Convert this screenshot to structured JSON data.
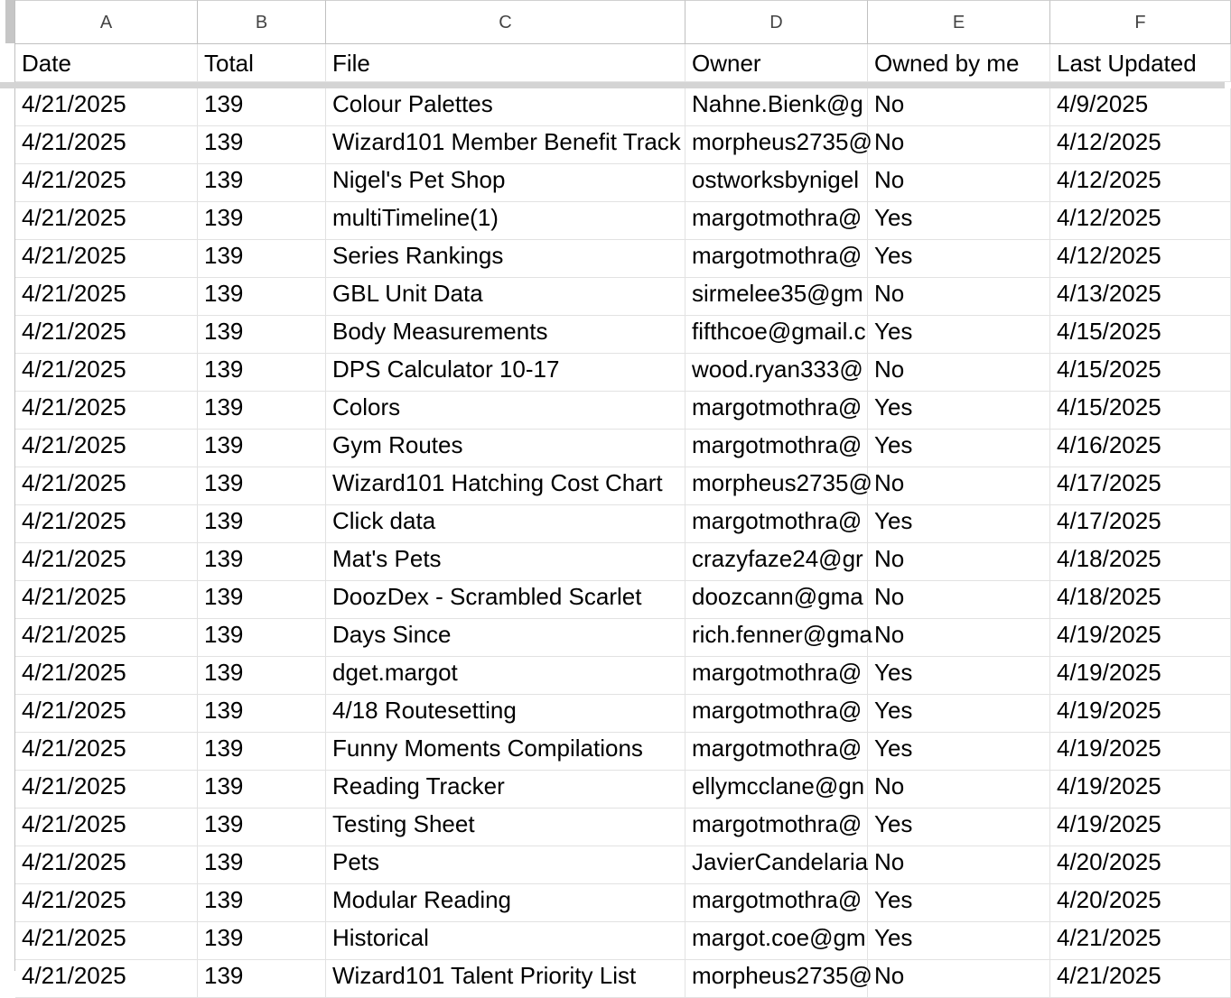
{
  "columns": [
    "A",
    "B",
    "C",
    "D",
    "E",
    "F"
  ],
  "header": [
    "Date",
    "Total",
    "File",
    "Owner",
    "Owned by me",
    "Last Updated"
  ],
  "rows": [
    [
      "4/21/2025",
      "139",
      "Colour Palettes",
      "Nahne.Bienk@g",
      "No",
      "4/9/2025"
    ],
    [
      "4/21/2025",
      "139",
      "Wizard101 Member Benefit Track",
      "morpheus2735@",
      "No",
      "4/12/2025"
    ],
    [
      "4/21/2025",
      "139",
      "Nigel's Pet Shop",
      "ostworksbynigel",
      "No",
      "4/12/2025"
    ],
    [
      "4/21/2025",
      "139",
      "multiTimeline(1)",
      "margotmothra@",
      "Yes",
      "4/12/2025"
    ],
    [
      "4/21/2025",
      "139",
      "Series Rankings",
      "margotmothra@",
      "Yes",
      "4/12/2025"
    ],
    [
      "4/21/2025",
      "139",
      "GBL Unit Data",
      "sirmelee35@gm",
      "No",
      "4/13/2025"
    ],
    [
      "4/21/2025",
      "139",
      "Body Measurements",
      "fifthcoe@gmail.c",
      "Yes",
      "4/15/2025"
    ],
    [
      "4/21/2025",
      "139",
      "DPS Calculator 10-17",
      "wood.ryan333@",
      "No",
      "4/15/2025"
    ],
    [
      "4/21/2025",
      "139",
      "Colors",
      "margotmothra@",
      "Yes",
      "4/15/2025"
    ],
    [
      "4/21/2025",
      "139",
      "Gym Routes",
      "margotmothra@",
      "Yes",
      "4/16/2025"
    ],
    [
      "4/21/2025",
      "139",
      "Wizard101 Hatching Cost Chart",
      "morpheus2735@",
      "No",
      "4/17/2025"
    ],
    [
      "4/21/2025",
      "139",
      "Click data",
      "margotmothra@",
      "Yes",
      "4/17/2025"
    ],
    [
      "4/21/2025",
      "139",
      "Mat's Pets",
      "crazyfaze24@gr",
      "No",
      "4/18/2025"
    ],
    [
      "4/21/2025",
      "139",
      "DoozDex - Scrambled Scarlet",
      "doozcann@gma",
      "No",
      "4/18/2025"
    ],
    [
      "4/21/2025",
      "139",
      "Days Since",
      "rich.fenner@gma",
      "No",
      "4/19/2025"
    ],
    [
      "4/21/2025",
      "139",
      "dget.margot",
      "margotmothra@",
      "Yes",
      "4/19/2025"
    ],
    [
      "4/21/2025",
      "139",
      "4/18 Routesetting",
      "margotmothra@",
      "Yes",
      "4/19/2025"
    ],
    [
      "4/21/2025",
      "139",
      "Funny Moments Compilations",
      "margotmothra@",
      "Yes",
      "4/19/2025"
    ],
    [
      "4/21/2025",
      "139",
      "Reading Tracker",
      "ellymcclane@gn",
      "No",
      "4/19/2025"
    ],
    [
      "4/21/2025",
      "139",
      "Testing Sheet",
      "margotmothra@",
      "Yes",
      "4/19/2025"
    ],
    [
      "4/21/2025",
      "139",
      "Pets",
      "JavierCandelaria",
      "No",
      "4/20/2025"
    ],
    [
      "4/21/2025",
      "139",
      "Modular Reading",
      "margotmothra@",
      "Yes",
      "4/20/2025"
    ],
    [
      "4/21/2025",
      "139",
      "Historical",
      "margot.coe@gm",
      "Yes",
      "4/21/2025"
    ],
    [
      "4/21/2025",
      "139",
      "Wizard101 Talent Priority List",
      "morpheus2735@",
      "No",
      "4/21/2025"
    ]
  ]
}
